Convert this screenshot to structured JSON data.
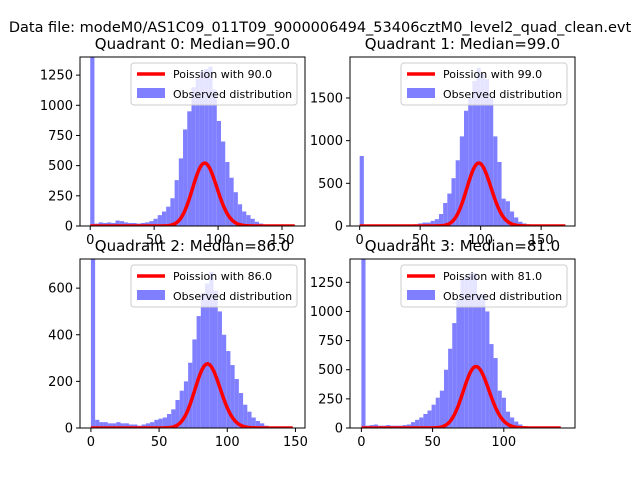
{
  "suptitle": "Data file: modeM0/AS1C09_011T09_9000006494_53406cztM0_level2_quad_clean.evt",
  "colors": {
    "hist": "#7f7fff",
    "poisson": "#ff0000",
    "axis": "#000000"
  },
  "chart_data": [
    {
      "type": "bar",
      "title": "Quadrant 0: Median=90.0",
      "xlim": [
        -8,
        168
      ],
      "ylim": [
        0,
        1400
      ],
      "xticks": [
        0,
        50,
        100,
        150
      ],
      "xtick_labels": [
        "0",
        "50",
        "100",
        "150"
      ],
      "yticks": [
        0,
        250,
        500,
        750,
        1000,
        1250
      ],
      "ytick_labels": [
        "0",
        "250",
        "500",
        "750",
        "1000",
        "1250"
      ],
      "bin_width": 3.3,
      "histogram": {
        "name": "Observed distribution",
        "bin_starts": [
          0,
          3.3,
          6.6,
          9.9,
          13.2,
          16.5,
          19.8,
          23.1,
          26.4,
          29.7,
          33,
          36.3,
          39.6,
          42.9,
          46.2,
          49.5,
          52.8,
          56.1,
          59.4,
          62.7,
          66,
          69.3,
          72.6,
          75.9,
          79.2,
          82.5,
          85.8,
          89.1,
          92.4,
          95.7,
          99,
          102.3,
          105.6,
          108.9,
          112.2,
          115.5,
          118.8,
          122.1,
          125.4,
          128.7,
          132,
          135.3,
          138.6,
          141.9,
          145.2,
          148.5,
          151.8,
          155.1
        ],
        "counts": [
          1400,
          20,
          30,
          25,
          30,
          25,
          45,
          40,
          30,
          25,
          25,
          20,
          25,
          30,
          40,
          60,
          90,
          120,
          160,
          230,
          380,
          560,
          800,
          950,
          1150,
          1220,
          1280,
          1300,
          1320,
          1130,
          870,
          700,
          530,
          400,
          280,
          180,
          120,
          90,
          60,
          35,
          20,
          10,
          5,
          3,
          2,
          1,
          1,
          1
        ]
      },
      "poisson": {
        "name": "Poission with 90.0",
        "mean": 90.0,
        "scale": 12390,
        "x_range": [
          0,
          160
        ]
      }
    },
    {
      "type": "bar",
      "title": "Quadrant 1: Median=99.0",
      "xlim": [
        -8,
        178
      ],
      "ylim": [
        0,
        1980
      ],
      "xticks": [
        0,
        50,
        100,
        150
      ],
      "xtick_labels": [
        "0",
        "50",
        "100",
        "150"
      ],
      "yticks": [
        0,
        500,
        1000,
        1500
      ],
      "ytick_labels": [
        "0",
        "500",
        "1000",
        "1500"
      ],
      "bin_width": 3.45,
      "histogram": {
        "name": "Observed distribution",
        "bin_starts": [
          0,
          3.45,
          6.9,
          10.35,
          13.8,
          17.25,
          20.7,
          24.15,
          27.6,
          31.05,
          34.5,
          37.95,
          41.4,
          44.85,
          48.3,
          51.75,
          55.2,
          58.65,
          62.1,
          65.55,
          69,
          72.45,
          75.9,
          79.35,
          82.8,
          86.25,
          89.7,
          93.15,
          96.6,
          100.05,
          103.5,
          106.95,
          110.4,
          113.85,
          117.3,
          120.75,
          124.2,
          127.65,
          131.1,
          134.55,
          138,
          141.45,
          144.9,
          148.35,
          151.8,
          155.25,
          158.7,
          162.15
        ],
        "counts": [
          820,
          5,
          5,
          5,
          5,
          5,
          5,
          5,
          5,
          5,
          8,
          10,
          12,
          20,
          30,
          40,
          40,
          60,
          80,
          140,
          270,
          380,
          560,
          770,
          1050,
          1350,
          1500,
          1700,
          1850,
          1780,
          1720,
          1500,
          1050,
          750,
          320,
          290,
          170,
          100,
          50,
          30,
          20,
          10,
          5,
          3,
          2,
          1,
          1,
          1
        ]
      },
      "poisson": {
        "name": "Poission with 99.0",
        "mean": 99.0,
        "scale": 18400,
        "x_range": [
          0,
          170
        ]
      }
    },
    {
      "type": "bar",
      "title": "Quadrant 2: Median=86.0",
      "xlim": [
        -8,
        157
      ],
      "ylim": [
        0,
        725
      ],
      "xticks": [
        0,
        50,
        100,
        150
      ],
      "xtick_labels": [
        "0",
        "50",
        "100",
        "150"
      ],
      "yticks": [
        0,
        200,
        400,
        600
      ],
      "ytick_labels": [
        "0",
        "200",
        "400",
        "600"
      ],
      "bin_width": 3.1,
      "histogram": {
        "name": "Observed distribution",
        "bin_starts": [
          0,
          3.1,
          6.2,
          9.3,
          12.4,
          15.5,
          18.6,
          21.7,
          24.8,
          27.9,
          31,
          34.1,
          37.2,
          40.3,
          43.4,
          46.5,
          49.6,
          52.7,
          55.8,
          58.9,
          62,
          65.1,
          68.2,
          71.3,
          74.4,
          77.5,
          80.6,
          83.7,
          86.8,
          89.9,
          93,
          96.1,
          99.2,
          102.3,
          105.4,
          108.5,
          111.6,
          114.7,
          117.8,
          120.9,
          124,
          127.1,
          130.2,
          133.3,
          136.4,
          139.5,
          142.6
        ],
        "counts": [
          725,
          35,
          25,
          25,
          20,
          20,
          25,
          20,
          20,
          15,
          15,
          10,
          15,
          20,
          25,
          35,
          40,
          45,
          60,
          80,
          120,
          160,
          200,
          280,
          380,
          480,
          580,
          620,
          670,
          590,
          500,
          400,
          330,
          270,
          210,
          150,
          100,
          70,
          45,
          30,
          20,
          10,
          5,
          3,
          2,
          1,
          1
        ]
      },
      "poisson": {
        "name": "Poission with 86.0",
        "mean": 86.0,
        "scale": 6400,
        "x_range": [
          0,
          148
        ]
      }
    },
    {
      "type": "bar",
      "title": "Quadrant 3: Median=81.0",
      "xlim": [
        -8,
        150
      ],
      "ylim": [
        0,
        1450
      ],
      "xticks": [
        0,
        50,
        100
      ],
      "xtick_labels": [
        "0",
        "50",
        "100"
      ],
      "yticks": [
        0,
        250,
        500,
        750,
        1000,
        1250
      ],
      "ytick_labels": [
        "0",
        "250",
        "500",
        "750",
        "1000",
        "1250"
      ],
      "bin_width": 2.9,
      "histogram": {
        "name": "Observed distribution",
        "bin_starts": [
          0,
          2.9,
          5.8,
          8.7,
          11.6,
          14.5,
          17.4,
          20.3,
          23.2,
          26.1,
          29,
          31.9,
          34.8,
          37.7,
          40.6,
          43.5,
          46.4,
          49.3,
          52.2,
          55.1,
          58,
          60.9,
          63.8,
          66.7,
          69.6,
          72.5,
          75.4,
          78.3,
          81.2,
          84.1,
          87,
          89.9,
          92.8,
          95.7,
          98.6,
          101.5,
          104.4,
          107.3,
          110.2,
          113.1,
          116,
          118.9,
          121.8,
          124.7,
          127.6,
          130.5,
          133.4
        ],
        "counts": [
          1450,
          20,
          25,
          30,
          20,
          20,
          25,
          20,
          20,
          20,
          25,
          30,
          50,
          70,
          90,
          120,
          150,
          200,
          260,
          320,
          500,
          680,
          900,
          1100,
          1280,
          1300,
          1330,
          1330,
          1140,
          1150,
          1000,
          720,
          600,
          320,
          260,
          140,
          90,
          55,
          30,
          15,
          10,
          5,
          3,
          2,
          1,
          1,
          1
        ]
      },
      "poisson": {
        "name": "Poission with 81.0",
        "mean": 81.0,
        "scale": 11900,
        "x_range": [
          0,
          140
        ]
      }
    }
  ]
}
